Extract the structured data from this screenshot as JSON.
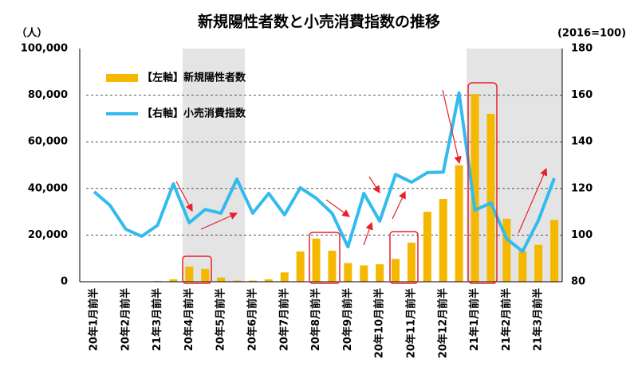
{
  "chart_data": {
    "type": "bar-line",
    "title": "新規陽性者数と小売消費指数の推移",
    "y_label": "（人）",
    "y2_label": "(2016=100)",
    "categories": [
      "20年1月前半",
      null,
      "20年2月前半",
      null,
      "21年3月前半",
      null,
      "20年4月前半",
      null,
      "20年5月前半",
      null,
      "20年6月前半",
      null,
      "20年7月前半",
      null,
      "20年8月前半",
      null,
      "20年9月前半",
      null,
      "20年10月前半",
      null,
      "20年11月前半",
      null,
      "20年12月前半",
      null,
      "21年1月前半",
      null,
      "21年2月前半",
      null,
      "21年3月前半",
      null
    ],
    "series": [
      {
        "name": "【左軸】新規陽性者数",
        "kind": "bar",
        "color": "#f5b800",
        "values": [
          0,
          0,
          0,
          0,
          300,
          1000,
          6500,
          5500,
          1800,
          500,
          500,
          1000,
          4000,
          13000,
          18500,
          13300,
          8000,
          7000,
          7500,
          9800,
          16800,
          30000,
          35500,
          50000,
          80500,
          72000,
          27000,
          13000,
          15800,
          26500
        ]
      },
      {
        "name": "【右軸】小売消費指数",
        "kind": "line",
        "axis": "y2",
        "color": "#33bbee",
        "values": [
          118.6,
          112.8,
          102.5,
          99.5,
          104.2,
          122,
          105.3,
          111,
          109.4,
          124,
          109.4,
          117.9,
          108.7,
          120.3,
          115.8,
          109.4,
          95,
          117.9,
          106,
          126,
          122.7,
          126.8,
          127,
          161,
          110.7,
          113.8,
          98.4,
          93,
          106.3,
          124.4
        ]
      }
    ],
    "ylim": [
      0,
      100000
    ],
    "yticks": [
      0,
      {
        "value": 20000,
        "label": "20,000"
      },
      {
        "value": 40000,
        "label": "40,000"
      },
      {
        "value": 60000,
        "label": "60,000"
      },
      {
        "value": 80000,
        "label": "80,000"
      },
      {
        "value": 100000,
        "label": "100,000"
      }
    ],
    "y2lim": [
      80,
      180
    ],
    "y2ticks": [
      80,
      100,
      120,
      140,
      160,
      180
    ],
    "grid": true
  }
}
